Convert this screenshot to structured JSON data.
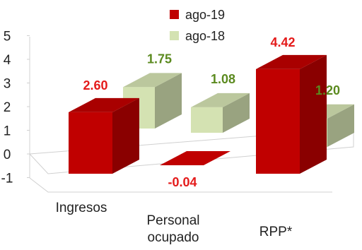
{
  "chart_data": {
    "type": "bar",
    "title": "",
    "categories": [
      "Ingresos",
      "Personal ocupado",
      "RPP*"
    ],
    "series": [
      {
        "name": "ago-19",
        "values": [
          2.6,
          -0.04,
          4.42
        ],
        "color": "#c00000",
        "label_color": "#e41b1b"
      },
      {
        "name": "ago-18",
        "values": [
          1.75,
          1.08,
          1.2
        ],
        "color": "#d4e2b2",
        "label_color": "#5b8a1f"
      }
    ],
    "data_labels": {
      "ago-19": [
        "2.60",
        "-0.04",
        "4.42"
      ],
      "ago-18": [
        "1.75",
        "1.08",
        "1.20"
      ]
    },
    "ylim": [
      -1,
      5
    ],
    "yticks": [
      "-1",
      "0",
      "1",
      "2",
      "3",
      "4",
      "5"
    ],
    "style": "3d-clustered-bar",
    "legend_position": "top-right",
    "category_label_lines": [
      [
        "Ingresos"
      ],
      [
        "Personal",
        "ocupado"
      ],
      [
        "RPP*"
      ]
    ]
  }
}
